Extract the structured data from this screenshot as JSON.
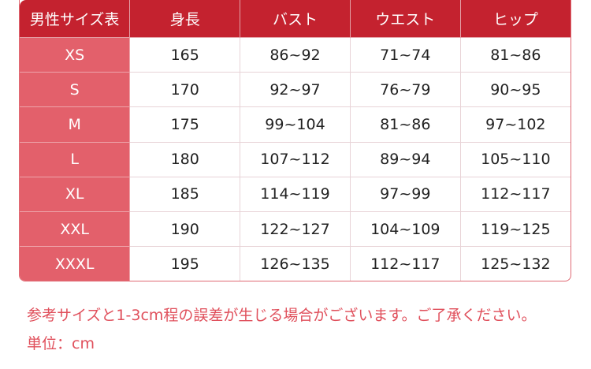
{
  "table": {
    "headers": [
      "男性サイズ表",
      "身長",
      "バスト",
      "ウエスト",
      "ヒップ"
    ],
    "rows": [
      [
        "XS",
        "165",
        "86~92",
        "71~74",
        "81~86"
      ],
      [
        "S",
        "170",
        "92~97",
        "76~79",
        "90~95"
      ],
      [
        "M",
        "175",
        "99~104",
        "81~86",
        "97~102"
      ],
      [
        "L",
        "180",
        "107~112",
        "89~94",
        "105~110"
      ],
      [
        "XL",
        "185",
        "114~119",
        "97~99",
        "112~117"
      ],
      [
        "XXL",
        "190",
        "122~127",
        "104~109",
        "119~125"
      ],
      [
        "XXXL",
        "195",
        "126~135",
        "112~117",
        "125~132"
      ]
    ]
  },
  "notes": {
    "disclaimer": "参考サイズと1-3cm程の誤差が生じる場合がございます。ご了承ください。",
    "unit": "単位：cm"
  },
  "colors": {
    "header": "#c4222f",
    "size_column": "#e3606b",
    "note_text": "#e0505c"
  }
}
